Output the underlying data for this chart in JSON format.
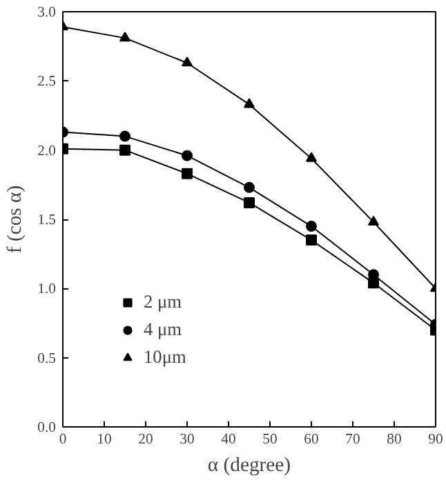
{
  "chart_data": {
    "type": "line",
    "xlabel": "α (degree)",
    "ylabel": "f (cos α)",
    "x": [
      0,
      15,
      30,
      45,
      60,
      75,
      90
    ],
    "series": [
      {
        "name": "2 μm",
        "color": "#000000",
        "marker": "square",
        "values": [
          2.01,
          2.0,
          1.83,
          1.62,
          1.35,
          1.04,
          0.7
        ]
      },
      {
        "name": "4 μm",
        "color": "#000000",
        "marker": "circle",
        "values": [
          2.13,
          2.1,
          1.96,
          1.73,
          1.45,
          1.1,
          0.74
        ]
      },
      {
        "name": "10μm",
        "color": "#000000",
        "marker": "triangle",
        "values": [
          2.89,
          2.81,
          2.63,
          2.33,
          1.94,
          1.48,
          1.0
        ]
      }
    ],
    "xlim": [
      0,
      90
    ],
    "xticks": [
      0,
      10,
      20,
      30,
      40,
      50,
      60,
      70,
      80,
      90
    ],
    "ylim": [
      0,
      3
    ],
    "yticks": [
      {
        "value": 0,
        "label": "0.0"
      },
      0.5,
      {
        "value": 1,
        "label": "1.0"
      },
      1.5,
      {
        "value": 2,
        "label": "2.0"
      },
      2.5,
      {
        "value": 3,
        "label": "3.0"
      }
    ],
    "grid": false,
    "legend": "bottom left",
    "line_style": "solid"
  }
}
